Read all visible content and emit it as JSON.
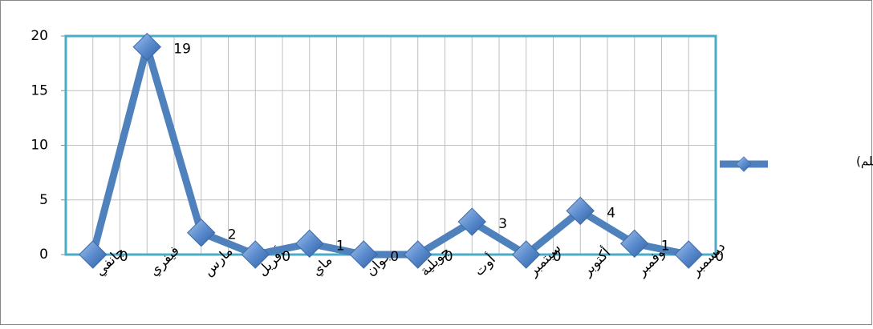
{
  "chart_data": {
    "type": "line",
    "categories": [
      "جانفي",
      "فيفري",
      "مارس",
      "أفريل",
      "ماي",
      "جوان",
      "جويلية",
      "أوت",
      "سبتمبر",
      "أكتوبر",
      "نوفمبر",
      "ديسمبر"
    ],
    "series": [
      {
        "name": "التساقط (ملم)",
        "color": "#4f81bd",
        "values": [
          0,
          19,
          2,
          0,
          1,
          0,
          0,
          3,
          0,
          4,
          1,
          0
        ]
      }
    ],
    "ylim": [
      0,
      20
    ],
    "yticks": [
      0,
      5,
      10,
      15,
      20
    ],
    "grid": true,
    "legend": "right"
  }
}
